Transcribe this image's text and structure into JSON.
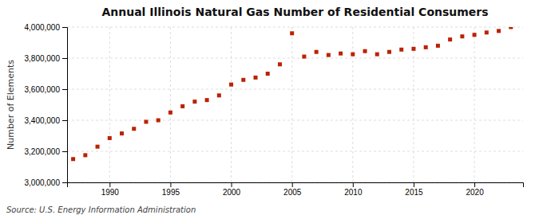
{
  "chart_data": {
    "type": "scatter",
    "title": "Annual Illinois Natural Gas Number of Residential Consumers",
    "ylabel": "Number of Elements",
    "annotations": [
      "Source: U.S. Energy Information Administration"
    ],
    "x": [
      1987,
      1988,
      1989,
      1990,
      1991,
      1992,
      1993,
      1994,
      1995,
      1996,
      1997,
      1998,
      1999,
      2000,
      2001,
      2002,
      2003,
      2004,
      2005,
      2006,
      2007,
      2008,
      2009,
      2010,
      2011,
      2012,
      2013,
      2014,
      2015,
      2016,
      2017,
      2018,
      2019,
      2020,
      2021,
      2022,
      2023
    ],
    "values": [
      3150000,
      3175000,
      3230000,
      3285000,
      3315000,
      3345000,
      3390000,
      3400000,
      3450000,
      3490000,
      3520000,
      3530000,
      3560000,
      3630000,
      3660000,
      3675000,
      3700000,
      3760000,
      3960000,
      3810000,
      3840000,
      3820000,
      3830000,
      3825000,
      3845000,
      3825000,
      3840000,
      3855000,
      3860000,
      3870000,
      3880000,
      3920000,
      3940000,
      3950000,
      3965000,
      3975000,
      4000000
    ],
    "color": "#bb2200",
    "marker": "square",
    "xlim": [
      1986.5,
      2024
    ],
    "ylim": [
      3000000,
      4000000
    ],
    "xticks": [
      1990,
      1995,
      2000,
      2005,
      2010,
      2015,
      2020
    ],
    "yticks": [
      {
        "value": 3000000,
        "label": "3,000,000"
      },
      {
        "value": 3200000,
        "label": "3,200,000"
      },
      {
        "value": 3400000,
        "label": "3,400,000"
      },
      {
        "value": 3600000,
        "label": "3,600,000"
      },
      {
        "value": 3800000,
        "label": "3,800,000"
      },
      {
        "value": 4000000,
        "label": "4,000,000"
      }
    ],
    "grid": true
  }
}
